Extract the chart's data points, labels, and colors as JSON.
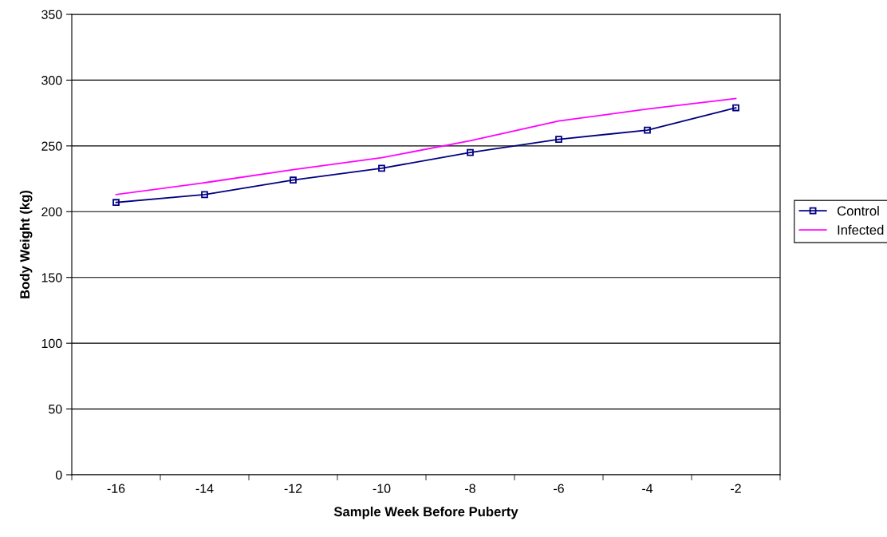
{
  "chart_data": {
    "type": "line",
    "xlabel": "Sample Week Before Puberty",
    "ylabel": "Body Weight (kg)",
    "categories": [
      "-16",
      "-14",
      "-12",
      "-10",
      "-8",
      "-6",
      "-4",
      "-2"
    ],
    "series": [
      {
        "name": "Control",
        "color": "#000080",
        "marker": "square",
        "values": [
          207,
          213,
          224,
          233,
          245,
          255,
          262,
          279
        ]
      },
      {
        "name": "Infected",
        "color": "#ff00ff",
        "marker": "none",
        "values": [
          213,
          222,
          232,
          241,
          254,
          269,
          278,
          286
        ]
      }
    ],
    "ylim": [
      0,
      350
    ],
    "yticks": [
      0,
      50,
      100,
      150,
      200,
      250,
      300,
      350
    ],
    "grid": "y",
    "legend": "right"
  }
}
